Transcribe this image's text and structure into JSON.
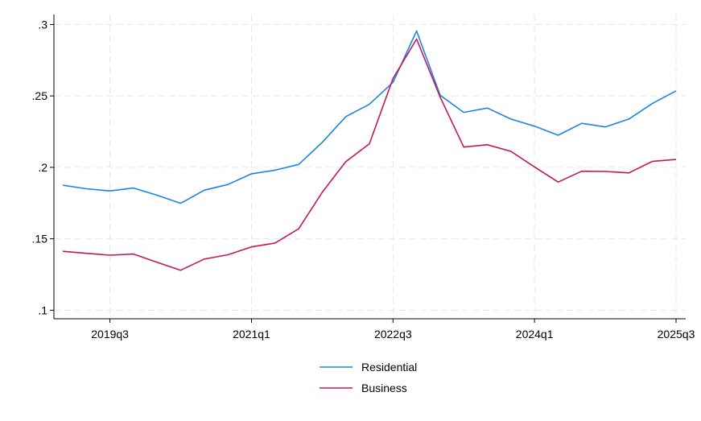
{
  "chart_data": {
    "type": "line",
    "title": "",
    "xlabel": "",
    "ylabel": "",
    "x": [
      "2019q1",
      "2019q2",
      "2019q3",
      "2019q4",
      "2020q1",
      "2020q2",
      "2020q3",
      "2020q4",
      "2021q1",
      "2021q2",
      "2021q3",
      "2021q4",
      "2022q1",
      "2022q2",
      "2022q3",
      "2022q4",
      "2023q1",
      "2023q2",
      "2023q3",
      "2023q4",
      "2024q1",
      "2024q2",
      "2024q3",
      "2024q4",
      "2025q1",
      "2025q2",
      "2025q3"
    ],
    "xticks": [
      "2019q3",
      "2021q1",
      "2022q3",
      "2024q1",
      "2025q3"
    ],
    "yticks": [
      ".1",
      ".15",
      ".2",
      ".25",
      ".3"
    ],
    "ytick_values": [
      0.1,
      0.15,
      0.2,
      0.25,
      0.3
    ],
    "ylim": [
      0.094,
      0.307
    ],
    "grid": true,
    "legend_position": "bottom",
    "series": [
      {
        "name": "Residential",
        "color": "#1a85e0",
        "values": [
          0.1875,
          0.185,
          0.1835,
          0.1855,
          0.1805,
          0.1748,
          0.184,
          0.188,
          0.1955,
          0.198,
          0.202,
          0.2175,
          0.2355,
          0.2442,
          0.2595,
          0.2955,
          0.2505,
          0.2385,
          0.2415,
          0.2338,
          0.2288,
          0.2225,
          0.2308,
          0.2283,
          0.2338,
          0.2448,
          0.2535
        ]
      },
      {
        "name": "Business",
        "color": "#c2185b",
        "values": [
          0.1412,
          0.1398,
          0.1385,
          0.1393,
          0.1335,
          0.128,
          0.1358,
          0.1388,
          0.1443,
          0.147,
          0.157,
          0.1825,
          0.204,
          0.2165,
          0.2622,
          0.2898,
          0.2492,
          0.2142,
          0.2158,
          0.2112,
          0.2003,
          0.1897,
          0.1973,
          0.1971,
          0.1961,
          0.2042,
          0.2055
        ]
      }
    ]
  }
}
